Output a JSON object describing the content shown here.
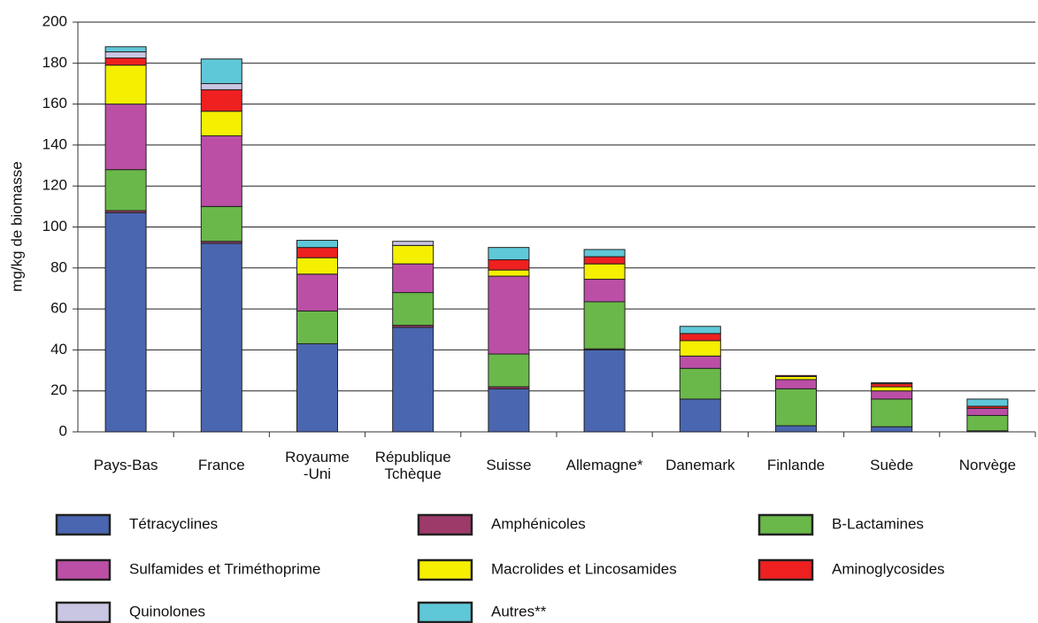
{
  "chart_data": {
    "type": "stacked_bar",
    "y_label": "mg/kg de biomasse",
    "categories": [
      "Pays-Bas",
      "France",
      "Royaume\n-Uni",
      "République\nTchèque",
      "Suisse",
      "Allemagne*",
      "Danemark",
      "Finlande",
      "Suède",
      "Norvège"
    ],
    "series": [
      {
        "name": "Tétracyclines",
        "color": "#4a66b0",
        "values": [
          107,
          92,
          43,
          51,
          21,
          40,
          16,
          3,
          2.5,
          0.5
        ]
      },
      {
        "name": "Amphénicoles",
        "color": "#9e3a6a",
        "values": [
          1,
          1,
          0,
          1,
          1,
          0.5,
          0,
          0,
          0,
          0
        ]
      },
      {
        "name": "B-Lactamines",
        "color": "#6ab84a",
        "values": [
          20,
          17,
          16,
          16,
          16,
          23,
          15,
          18,
          13.5,
          7.5
        ]
      },
      {
        "name": "Sulfamides et Triméthoprime",
        "color": "#bb4fa6",
        "values": [
          32,
          34.5,
          18,
          14,
          38,
          11,
          6,
          4.5,
          4,
          3.5
        ]
      },
      {
        "name": "Macrolides et Lincosamides",
        "color": "#f5ef00",
        "values": [
          19,
          12,
          8,
          9,
          3,
          7.5,
          7.5,
          1.5,
          2,
          0
        ]
      },
      {
        "name": "Aminoglycosides",
        "color": "#ee2020",
        "values": [
          3.5,
          10.5,
          5,
          0,
          5,
          3.5,
          3.5,
          0.5,
          1.5,
          1
        ]
      },
      {
        "name": "Quinolones",
        "color": "#c9c6e3",
        "values": [
          3,
          3,
          0,
          2,
          0,
          0,
          0,
          0,
          0,
          0
        ]
      },
      {
        "name": "Autres**",
        "color": "#5fc8d8",
        "values": [
          2.5,
          12,
          3.5,
          0,
          6,
          3.5,
          3.5,
          0,
          0.5,
          3.5
        ]
      }
    ],
    "ylim": [
      0,
      200
    ],
    "yticks": [
      0,
      20,
      40,
      60,
      80,
      100,
      120,
      140,
      160,
      180,
      200
    ],
    "grid": true
  }
}
